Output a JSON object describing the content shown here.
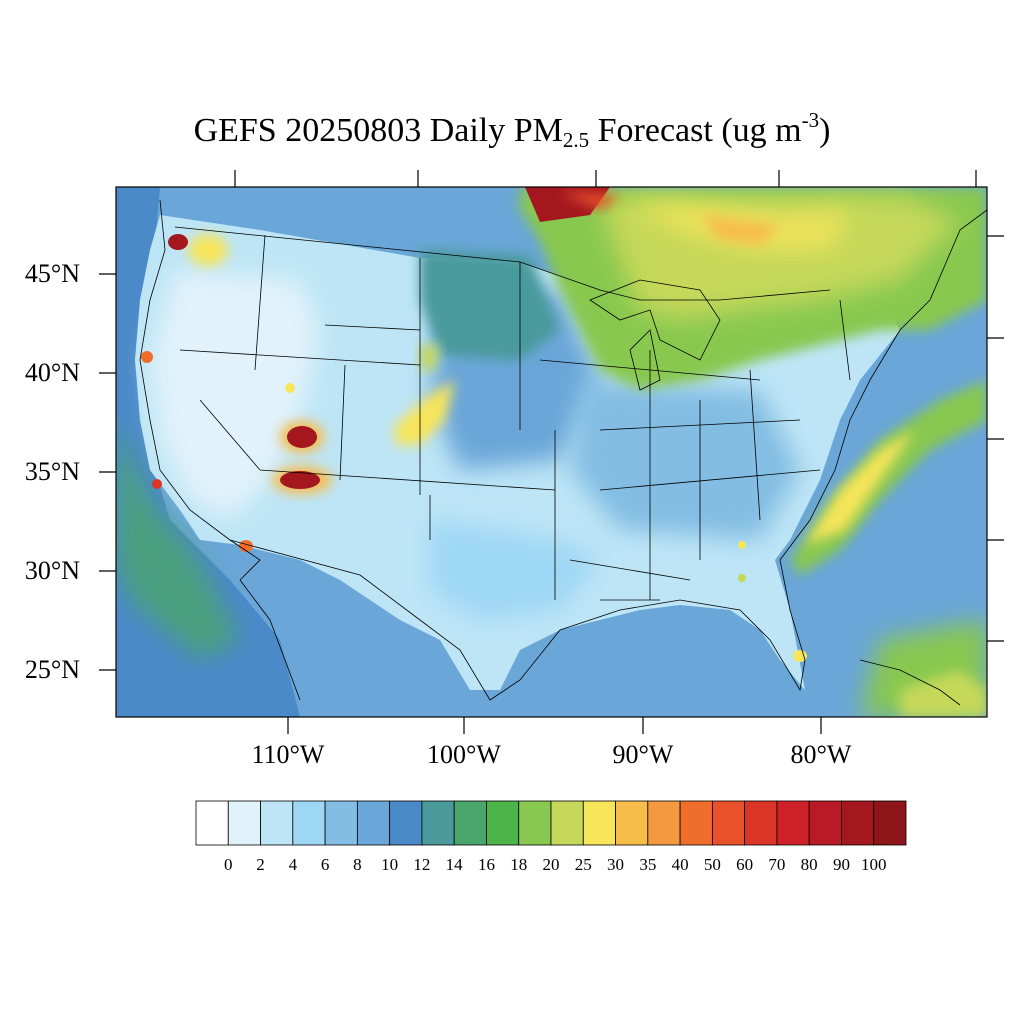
{
  "title": {
    "main": "GEFS 20250803 Daily PM",
    "sub": "2.5",
    "after": " Forecast (ug m",
    "sup": "-3",
    "close": ")"
  },
  "lat_labels": [
    "45°N",
    "40°N",
    "35°N",
    "30°N",
    "25°N"
  ],
  "lon_labels": [
    "110°W",
    "100°W",
    "90°W",
    "80°W"
  ],
  "colorbar": {
    "labels": [
      "0",
      "2",
      "4",
      "6",
      "8",
      "10",
      "12",
      "14",
      "16",
      "18",
      "20",
      "25",
      "30",
      "35",
      "40",
      "50",
      "60",
      "70",
      "80",
      "90",
      "100"
    ],
    "colors": [
      "#ffffff",
      "#e1f2fb",
      "#bde5f6",
      "#9ed7f5",
      "#83bde3",
      "#6aa6d8",
      "#4b8ac9",
      "#4a9a9c",
      "#4aa56d",
      "#4cb54a",
      "#88c850",
      "#c5d85a",
      "#f7e55a",
      "#f7bd4b",
      "#f4993f",
      "#ef6e2c",
      "#e85129",
      "#dc3427",
      "#d12128",
      "#b91a25",
      "#a4171f",
      "#8e1519"
    ]
  },
  "colors": {
    "ocean_pacific": "#4b8ac9",
    "ocean_atlantic": "#6aa6d8",
    "land_base": "#bde5f6",
    "northern_plains": "#4a9a9c",
    "canada_smoke": "#c5d85a",
    "hotspot": "#b91a25"
  }
}
